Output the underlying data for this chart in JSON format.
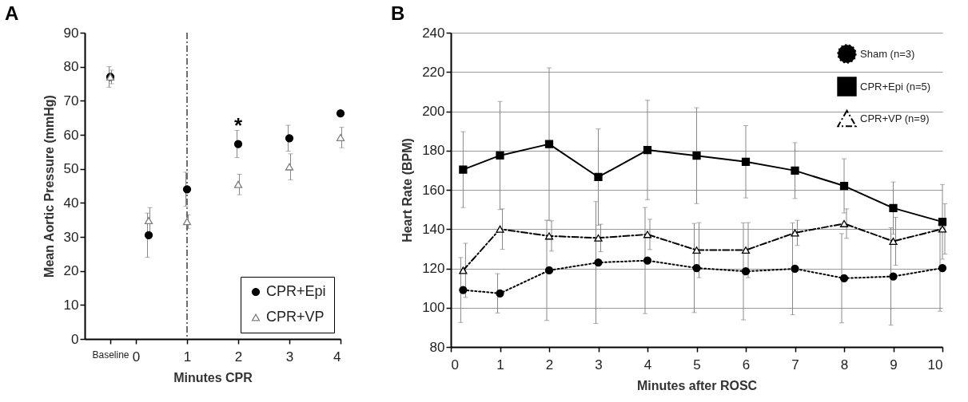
{
  "chart_data": [
    {
      "type": "scatter",
      "title": "A",
      "xlabel": "Minutes CPR",
      "ylabel": "Mean Aortic Pressure (mmHg)",
      "xlim": [
        -1,
        4
      ],
      "xticks": [
        {
          "value": -0.5,
          "label": "Baseline"
        },
        0,
        1,
        2,
        3,
        4
      ],
      "ylim": [
        0,
        90
      ],
      "yticks": [
        0,
        10,
        20,
        30,
        40,
        50,
        60,
        70,
        80,
        90
      ],
      "grid": false,
      "legend": "bottom right",
      "x": [
        -0.5,
        0.25,
        1,
        2,
        3,
        4
      ],
      "series": [
        {
          "name": "CPR+Epi",
          "color": "#000000",
          "marker": "circle",
          "values": [
            77,
            30.5,
            44,
            57.3,
            59,
            66.3
          ],
          "errors": [
            3,
            6.5,
            5,
            4,
            3.8,
            null
          ]
        },
        {
          "name": "CPR+VP",
          "color": "#7f7f7f",
          "marker": "triangle",
          "values": [
            77,
            34.8,
            34.5,
            45.4,
            50.6,
            59.2
          ],
          "errors": [
            2,
            3.8,
            2,
            3,
            3.8,
            3
          ]
        }
      ],
      "ref_lines": [
        {
          "axis": "x",
          "value": 1,
          "label": null,
          "line_style": "dashed",
          "color": "#404040"
        }
      ],
      "annotations": [
        {
          "text": "*",
          "x": 2,
          "y": 61.3
        }
      ]
    },
    {
      "type": "line",
      "title": "B",
      "xlabel": "Minutes after ROSC",
      "ylabel": "Heart Rate (BPM)",
      "xlim": [
        0,
        10
      ],
      "xticks": [
        0,
        1,
        2,
        3,
        4,
        5,
        6,
        7,
        8,
        9,
        10
      ],
      "ylim": [
        80,
        240
      ],
      "yticks": [
        80,
        100,
        120,
        140,
        160,
        180,
        200,
        220,
        240
      ],
      "grid": "y",
      "legend": "top right",
      "x": [
        0.25,
        1,
        2,
        3,
        4,
        5,
        6,
        7,
        8,
        9,
        10
      ],
      "series": [
        {
          "name": "Sham (n=3)",
          "color": "#000000",
          "marker": "circle",
          "line_style": "dotted",
          "values": [
            109,
            107.3,
            119,
            123,
            124,
            120.2,
            118.5,
            119.8,
            115,
            115.9,
            120.2
          ],
          "errors": [
            16.5,
            10,
            25.5,
            31,
            27,
            22.7,
            24.7,
            23.4,
            22.7,
            24.8,
            22
          ]
        },
        {
          "name": "CPR+Epi (n=5)",
          "color": "#000000",
          "marker": "square",
          "line_style": "solid",
          "values": [
            170.3,
            177.5,
            183.3,
            166.5,
            180.3,
            177.4,
            174.3,
            169.8,
            162,
            150.7,
            143.7
          ],
          "errors": [
            19.3,
            27.5,
            38.8,
            24.5,
            25.3,
            24.4,
            18.4,
            14.2,
            13.8,
            13.3,
            19
          ]
        },
        {
          "name": "CPR+VP (n=9)",
          "color": "#000000",
          "marker": "triangle",
          "line_style": "dashed",
          "values": [
            119,
            140,
            136.5,
            135.5,
            137.3,
            129.3,
            129.3,
            138.1,
            142.8,
            133.8,
            140.1
          ],
          "errors": [
            13.8,
            10.3,
            7.7,
            7,
            7.7,
            14,
            14,
            6.4,
            7.5,
            12.2,
            12.8
          ]
        }
      ]
    }
  ]
}
